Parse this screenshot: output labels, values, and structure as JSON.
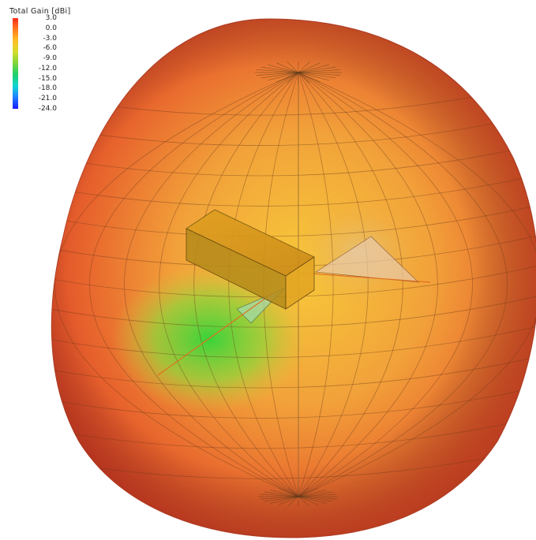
{
  "chart_data": {
    "type": "other",
    "title": "Total Gain [dBi]",
    "colorbar": {
      "ticks": [
        "3.0",
        "0.0",
        "-3.0",
        "-6.0",
        "-9.0",
        "-12.0",
        "-15.0",
        "-18.0",
        "-21.0",
        "-24.0"
      ],
      "range": [
        -24.0,
        3.0
      ],
      "colors": [
        "#ff2a1a",
        "#ff7a1f",
        "#ffbf26",
        "#d6dd2a",
        "#7ed63a",
        "#1fd06a",
        "#12d7d4",
        "#1f80ff",
        "#1a1aff"
      ]
    },
    "description_colors": {
      "lobe_high": "#e24a26",
      "lobe_mid": "#f1a53a",
      "null_low": "#3fcf3a"
    }
  }
}
